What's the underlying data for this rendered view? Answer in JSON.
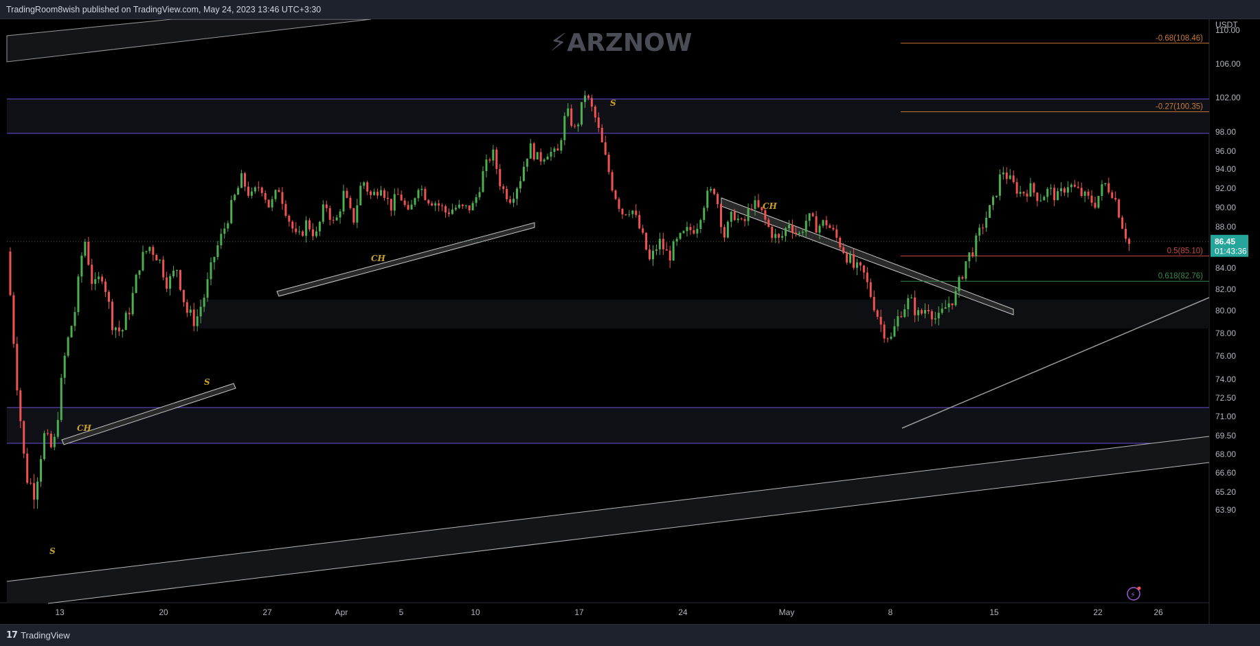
{
  "header": {
    "publisher_text": "TradingRoom8wish published on TradingView.com, May 24, 2023 13:46 UTC+3:30"
  },
  "footer": {
    "logo_mark": "17",
    "logo_text": "TradingView"
  },
  "watermark": "ARZNOW",
  "colors": {
    "background": "#000000",
    "up": "#4caf50",
    "down": "#ef5350",
    "zone_line": "#6a4fd8",
    "price_badge": "#26a69a",
    "fib_red": "#c74a4a",
    "fib_green": "#3b8a4a",
    "fib_orange": "#c77a3a",
    "annotation": "#c9a227"
  },
  "chart_data": {
    "type": "candlestick",
    "quote_currency": "USDT",
    "current_price": "86.45",
    "countdown": "01:43:36",
    "x_tick_labels": [
      "13",
      "20",
      "27",
      "Apr",
      "5",
      "10",
      "17",
      "24",
      "May",
      "8",
      "15",
      "22",
      "26"
    ],
    "y_tick_labels": [
      "110.00",
      "106.00",
      "102.00",
      "98.00",
      "96.00",
      "94.00",
      "92.00",
      "90.00",
      "88.00",
      "86.00",
      "84.00",
      "82.00",
      "80.00",
      "78.00",
      "76.00",
      "74.00",
      "72.50",
      "71.00",
      "69.50",
      "68.00",
      "66.60",
      "65.20",
      "63.90"
    ],
    "price_path": [
      [
        0.0,
        85.5
      ],
      [
        0.03,
        74.5
      ],
      [
        0.06,
        66.5
      ],
      [
        0.09,
        65.2
      ],
      [
        0.12,
        69.5
      ],
      [
        0.15,
        68.2
      ],
      [
        0.19,
        76.5
      ],
      [
        0.22,
        80.0
      ],
      [
        0.25,
        87.0
      ],
      [
        0.28,
        82.0
      ],
      [
        0.31,
        83.5
      ],
      [
        0.34,
        79.0
      ],
      [
        0.37,
        78.0
      ],
      [
        0.4,
        80.5
      ],
      [
        0.43,
        84.5
      ],
      [
        0.46,
        86.0
      ],
      [
        0.49,
        85.0
      ],
      [
        0.52,
        82.5
      ],
      [
        0.55,
        84.0
      ],
      [
        0.58,
        80.0
      ],
      [
        0.61,
        79.0
      ],
      [
        0.64,
        81.5
      ],
      [
        0.67,
        85.0
      ],
      [
        0.7,
        87.5
      ],
      [
        0.73,
        90.5
      ],
      [
        0.76,
        93.0
      ],
      [
        0.79,
        91.0
      ],
      [
        0.82,
        92.5
      ],
      [
        0.85,
        90.0
      ],
      [
        0.88,
        92.0
      ],
      [
        0.91,
        89.0
      ],
      [
        0.94,
        86.5
      ],
      [
        0.97,
        88.5
      ],
      [
        1.0,
        87.0
      ],
      [
        1.03,
        90.5
      ],
      [
        1.06,
        88.0
      ],
      [
        1.09,
        91.5
      ],
      [
        1.12,
        88.5
      ],
      [
        1.15,
        93.0
      ],
      [
        1.18,
        91.0
      ],
      [
        1.21,
        92.5
      ],
      [
        1.24,
        90.0
      ],
      [
        1.27,
        91.5
      ],
      [
        1.3,
        89.0
      ],
      [
        1.33,
        92.5
      ],
      [
        1.36,
        91.0
      ],
      [
        1.39,
        90.5
      ],
      [
        1.42,
        89.5
      ],
      [
        1.45,
        90.0
      ],
      [
        1.48,
        89.8
      ],
      [
        1.51,
        90.2
      ],
      [
        1.54,
        93.5
      ],
      [
        1.57,
        96.0
      ],
      [
        1.6,
        92.0
      ],
      [
        1.63,
        91.0
      ],
      [
        1.66,
        93.0
      ],
      [
        1.69,
        96.5
      ],
      [
        1.72,
        95.0
      ],
      [
        1.75,
        96.0
      ],
      [
        1.78,
        95.5
      ],
      [
        1.81,
        100.5
      ],
      [
        1.84,
        98.0
      ],
      [
        1.87,
        102.5
      ],
      [
        1.9,
        100.0
      ],
      [
        1.93,
        96.0
      ],
      [
        1.96,
        92.0
      ],
      [
        1.99,
        89.5
      ],
      [
        2.02,
        90.0
      ],
      [
        2.05,
        87.5
      ],
      [
        2.08,
        84.5
      ],
      [
        2.11,
        86.5
      ],
      [
        2.14,
        85.0
      ],
      [
        2.17,
        86.5
      ],
      [
        2.2,
        87.5
      ],
      [
        2.23,
        88.0
      ],
      [
        2.26,
        91.0
      ],
      [
        2.29,
        92.0
      ],
      [
        2.32,
        87.0
      ],
      [
        2.35,
        89.5
      ],
      [
        2.38,
        88.0
      ],
      [
        2.41,
        90.5
      ],
      [
        2.44,
        89.5
      ],
      [
        2.47,
        87.5
      ],
      [
        2.5,
        86.5
      ],
      [
        2.53,
        88.5
      ],
      [
        2.56,
        87.0
      ],
      [
        2.59,
        89.0
      ],
      [
        2.62,
        88.0
      ],
      [
        2.65,
        88.5
      ],
      [
        2.68,
        87.0
      ],
      [
        2.71,
        85.5
      ],
      [
        2.74,
        84.0
      ],
      [
        2.77,
        83.5
      ],
      [
        2.8,
        81.0
      ],
      [
        2.83,
        78.5
      ],
      [
        2.86,
        77.5
      ],
      [
        2.89,
        80.0
      ],
      [
        2.92,
        81.0
      ],
      [
        2.95,
        79.5
      ],
      [
        2.98,
        80.5
      ],
      [
        3.01,
        79.0
      ],
      [
        3.04,
        80.5
      ],
      [
        3.07,
        81.5
      ],
      [
        3.1,
        84.5
      ],
      [
        3.13,
        86.0
      ],
      [
        3.16,
        88.5
      ],
      [
        3.19,
        90.5
      ],
      [
        3.22,
        94.0
      ],
      [
        3.25,
        92.5
      ],
      [
        3.28,
        91.5
      ],
      [
        3.31,
        92.0
      ],
      [
        3.34,
        91.0
      ],
      [
        3.37,
        91.8
      ],
      [
        3.4,
        91.0
      ],
      [
        3.43,
        92.5
      ],
      [
        3.46,
        91.8
      ],
      [
        3.49,
        91.0
      ],
      [
        3.52,
        90.5
      ],
      [
        3.55,
        92.5
      ],
      [
        3.58,
        91.5
      ],
      [
        3.61,
        88.0
      ],
      [
        3.63,
        86.2
      ]
    ]
  },
  "fib_levels": [
    {
      "label": "-0.68(108.46)",
      "price": 108.46,
      "color": "#c77a3a"
    },
    {
      "label": "-0.27(100.35)",
      "price": 100.35,
      "color": "#c77a3a"
    },
    {
      "label": "0.5(85.10)",
      "price": 85.1,
      "color": "#c74a4a"
    },
    {
      "label": "0.618(82.76)",
      "price": 82.76,
      "color": "#3b8a4a"
    }
  ],
  "annotations": [
    "S",
    "CH",
    "CH",
    "S",
    "S",
    "CH",
    "S"
  ]
}
